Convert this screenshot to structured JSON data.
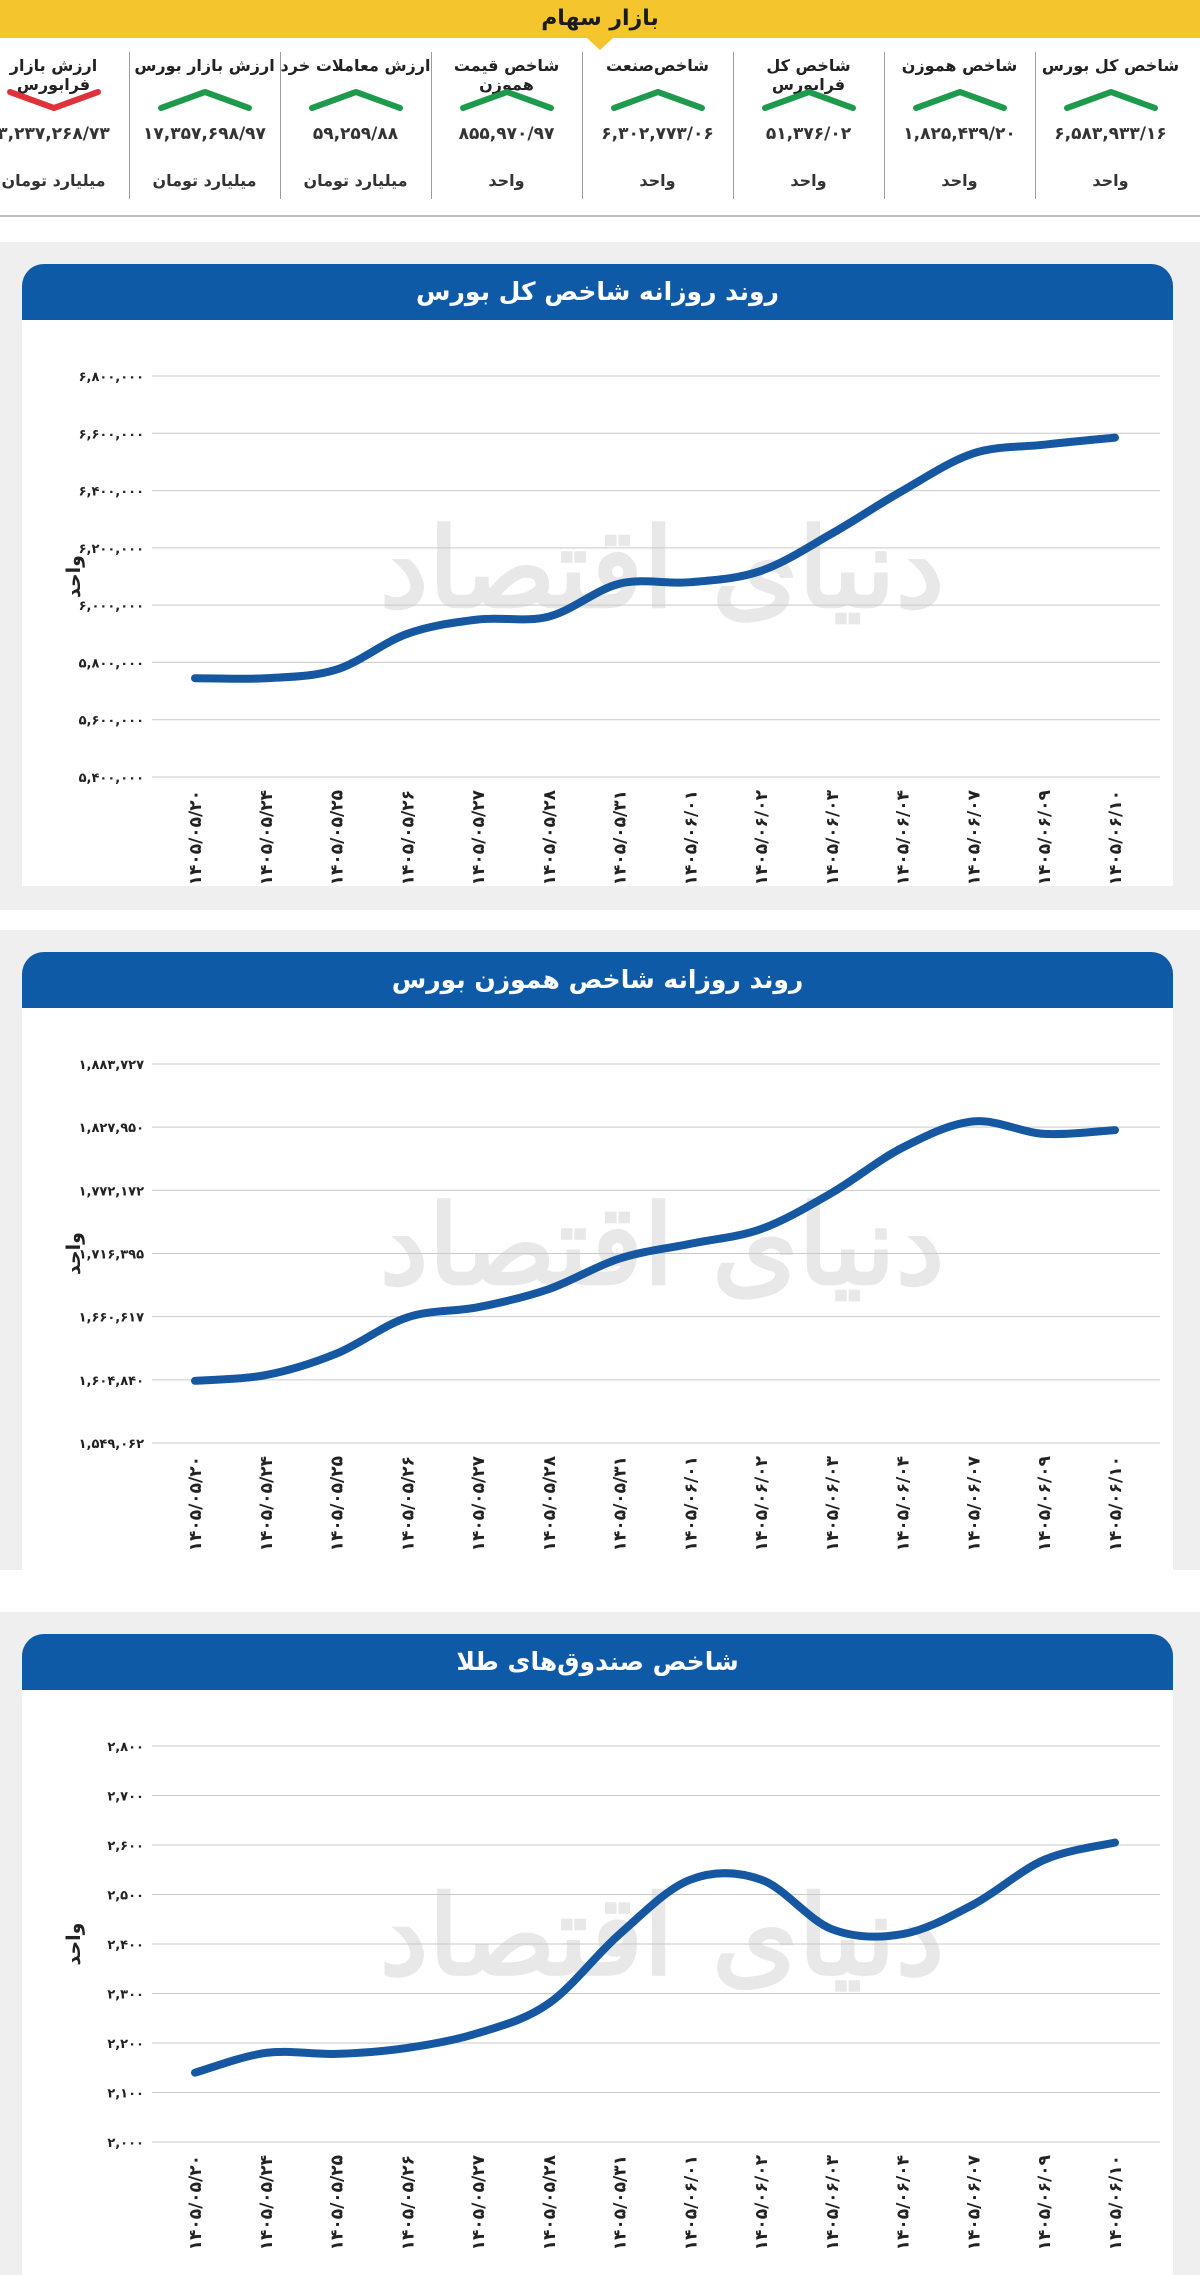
{
  "header": {
    "title": "بازار سهام"
  },
  "ticker": [
    {
      "label": "شاخص کل بورس",
      "value": "۶,۵۸۳,۹۳۳/۱۶",
      "unit": "واحد",
      "trend": "up",
      "color": "#1e9a4c"
    },
    {
      "label": "شاخص هموزن",
      "value": "۱,۸۲۵,۴۳۹/۲۰",
      "unit": "واحد",
      "trend": "up",
      "color": "#1e9a4c"
    },
    {
      "label": "شاخص کل فرابورس",
      "value": "۵۱,۳۷۶/۰۲",
      "unit": "واحد",
      "trend": "up",
      "color": "#1e9a4c"
    },
    {
      "label": "شاخص‌صنعت",
      "value": "۶,۳۰۲,۷۷۳/۰۶",
      "unit": "واحد",
      "trend": "up",
      "color": "#1e9a4c"
    },
    {
      "label": "شاخص قیمت هموزن",
      "value": "۸۵۵,۹۷۰/۹۷",
      "unit": "واحد",
      "trend": "up",
      "color": "#1e9a4c"
    },
    {
      "label": "ارزش معاملات خرد",
      "value": "۵۹,۲۵۹/۸۸",
      "unit": "میلیارد تومان",
      "trend": "up",
      "color": "#1e9a4c"
    },
    {
      "label": "ارزش بازار بورس",
      "value": "۱۷,۳۵۷,۶۹۸/۹۷",
      "unit": "میلیارد تومان",
      "trend": "up",
      "color": "#1e9a4c"
    },
    {
      "label": "ارزش بازار فرابورس",
      "value": "۳,۲۳۷,۲۶۸/۷۳",
      "unit": "میلیارد تومان",
      "trend": "down",
      "color": "#e0323a"
    }
  ],
  "watermark": "دنیای اقتصاد",
  "colors": {
    "accent": "#0f5aa7",
    "line": "#1557a0",
    "band": "#efefef",
    "header": "#f4c52c"
  },
  "chart_data": [
    {
      "type": "line",
      "title": "روند روزانه شاخص کل بورس",
      "ylabel": "واحد",
      "xlabel": "",
      "ylim": [
        5400000,
        6800000
      ],
      "yticks": [
        5400000,
        5600000,
        5800000,
        6000000,
        6200000,
        6400000,
        6600000,
        6800000
      ],
      "ytick_labels": [
        "۵,۴۰۰,۰۰۰",
        "۵,۶۰۰,۰۰۰",
        "۵,۸۰۰,۰۰۰",
        "۶,۰۰۰,۰۰۰",
        "۶,۲۰۰,۰۰۰",
        "۶,۴۰۰,۰۰۰",
        "۶,۶۰۰,۰۰۰",
        "۶,۸۰۰,۰۰۰"
      ],
      "categories": [
        "۱۴۰۵/۰۵/۲۰",
        "۱۴۰۵/۰۵/۲۴",
        "۱۴۰۵/۰۵/۲۵",
        "۱۴۰۵/۰۵/۲۶",
        "۱۴۰۵/۰۵/۲۷",
        "۱۴۰۵/۰۵/۲۸",
        "۱۴۰۵/۰۵/۳۱",
        "۱۴۰۵/۰۶/۰۱",
        "۱۴۰۵/۰۶/۰۲",
        "۱۴۰۵/۰۶/۰۳",
        "۱۴۰۵/۰۶/۰۴",
        "۱۴۰۵/۰۶/۰۷",
        "۱۴۰۵/۰۶/۰۹",
        "۱۴۰۵/۰۶/۱۰"
      ],
      "series": [
        {
          "values": [
            5745000,
            5745000,
            5775000,
            5900000,
            5950000,
            5960000,
            6075000,
            6080000,
            6120000,
            6250000,
            6400000,
            6530000,
            6560000,
            6585000
          ]
        }
      ],
      "grid": true
    },
    {
      "type": "line",
      "title": "روند روزانه شاخص هموزن بورس",
      "ylabel": "واحد",
      "xlabel": "",
      "ylim": [
        1549062,
        1883727
      ],
      "yticks": [
        1549062,
        1604840,
        1660617,
        1716395,
        1772172,
        1827950,
        1883727
      ],
      "ytick_labels": [
        "۱,۵۴۹,۰۶۲",
        "۱,۶۰۴,۸۴۰",
        "۱,۶۶۰,۶۱۷",
        "۱,۷۱۶,۳۹۵",
        "۱,۷۷۲,۱۷۲",
        "۱,۸۲۷,۹۵۰",
        "۱,۸۸۳,۷۲۷"
      ],
      "categories": [
        "۱۴۰۵/۰۵/۲۰",
        "۱۴۰۵/۰۵/۲۴",
        "۱۴۰۵/۰۵/۲۵",
        "۱۴۰۵/۰۵/۲۶",
        "۱۴۰۵/۰۵/۲۷",
        "۱۴۰۵/۰۵/۲۸",
        "۱۴۰۵/۰۵/۳۱",
        "۱۴۰۵/۰۶/۰۱",
        "۱۴۰۵/۰۶/۰۲",
        "۱۴۰۵/۰۶/۰۳",
        "۱۴۰۵/۰۶/۰۴",
        "۱۴۰۵/۰۶/۰۷",
        "۱۴۰۵/۰۶/۰۹",
        "۱۴۰۵/۰۶/۱۰"
      ],
      "series": [
        {
          "values": [
            1604000,
            1609000,
            1628000,
            1660000,
            1669000,
            1685000,
            1712000,
            1725000,
            1738000,
            1770000,
            1810000,
            1833000,
            1822000,
            1825400
          ]
        }
      ],
      "grid": true
    },
    {
      "type": "line",
      "title": "شاخص صندوق‌های طلا",
      "ylabel": "واحد",
      "xlabel": "",
      "ylim": [
        2000,
        2800
      ],
      "yticks": [
        2000,
        2100,
        2200,
        2300,
        2400,
        2500,
        2600,
        2700,
        2800
      ],
      "ytick_labels": [
        "۲,۰۰۰",
        "۲,۱۰۰",
        "۲,۲۰۰",
        "۲,۳۰۰",
        "۲,۴۰۰",
        "۲,۵۰۰",
        "۲,۶۰۰",
        "۲,۷۰۰",
        "۲,۸۰۰"
      ],
      "categories": [
        "۱۴۰۵/۰۵/۲۰",
        "۱۴۰۵/۰۵/۲۴",
        "۱۴۰۵/۰۵/۲۵",
        "۱۴۰۵/۰۵/۲۶",
        "۱۴۰۵/۰۵/۲۷",
        "۱۴۰۵/۰۵/۲۸",
        "۱۴۰۵/۰۵/۳۱",
        "۱۴۰۵/۰۶/۰۱",
        "۱۴۰۵/۰۶/۰۲",
        "۱۴۰۵/۰۶/۰۳",
        "۱۴۰۵/۰۶/۰۴",
        "۱۴۰۵/۰۶/۰۷",
        "۱۴۰۵/۰۶/۰۹",
        "۱۴۰۵/۰۶/۱۰"
      ],
      "series": [
        {
          "values": [
            2140,
            2180,
            2178,
            2190,
            2220,
            2280,
            2420,
            2530,
            2530,
            2430,
            2420,
            2480,
            2570,
            2605
          ]
        }
      ],
      "grid": true
    }
  ]
}
